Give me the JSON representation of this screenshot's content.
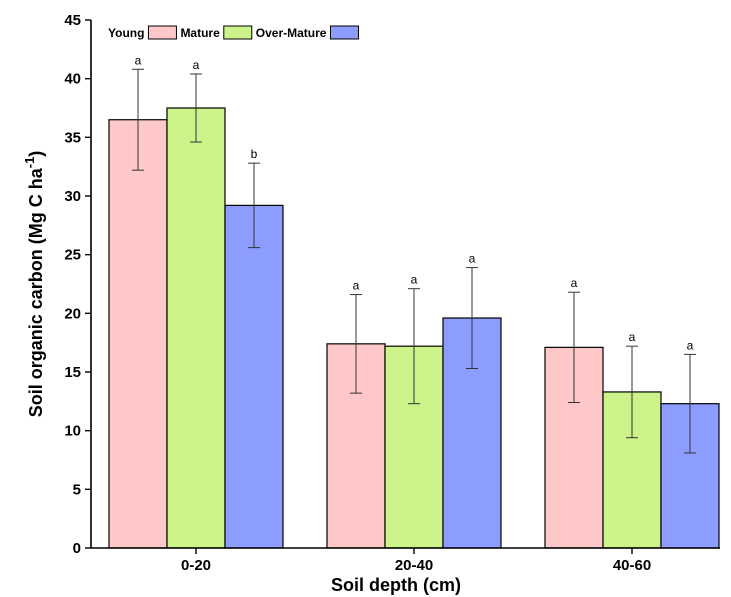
{
  "chart_data": {
    "type": "bar",
    "title": "",
    "xlabel": "Soil depth (cm)",
    "ylabel": {
      "main": "Soil organic carbon (Mg C ha",
      "sup": "-1",
      "close": ")"
    },
    "categories": [
      "0-20",
      "20-40",
      "40-60"
    ],
    "ylim": [
      0,
      45
    ],
    "yticks": [
      0,
      5,
      10,
      15,
      20,
      25,
      30,
      35,
      40,
      45
    ],
    "grid": false,
    "legend_position": "top-left",
    "series": [
      {
        "name": "Young",
        "color": "#ffc8c8",
        "values": [
          36.5,
          17.4,
          17.1
        ],
        "errors": [
          4.3,
          4.2,
          4.7
        ],
        "labels": [
          "a",
          "a",
          "a"
        ]
      },
      {
        "name": "Mature",
        "color": "#ccf28a",
        "values": [
          37.5,
          17.2,
          13.3
        ],
        "errors": [
          2.9,
          4.9,
          3.9
        ],
        "labels": [
          "a",
          "a",
          "a"
        ]
      },
      {
        "name": "Over-Mature",
        "color": "#8c9cff",
        "values": [
          29.2,
          19.6,
          12.3
        ],
        "errors": [
          3.6,
          4.3,
          4.2
        ],
        "labels": [
          "b",
          "a",
          "a"
        ]
      }
    ]
  }
}
